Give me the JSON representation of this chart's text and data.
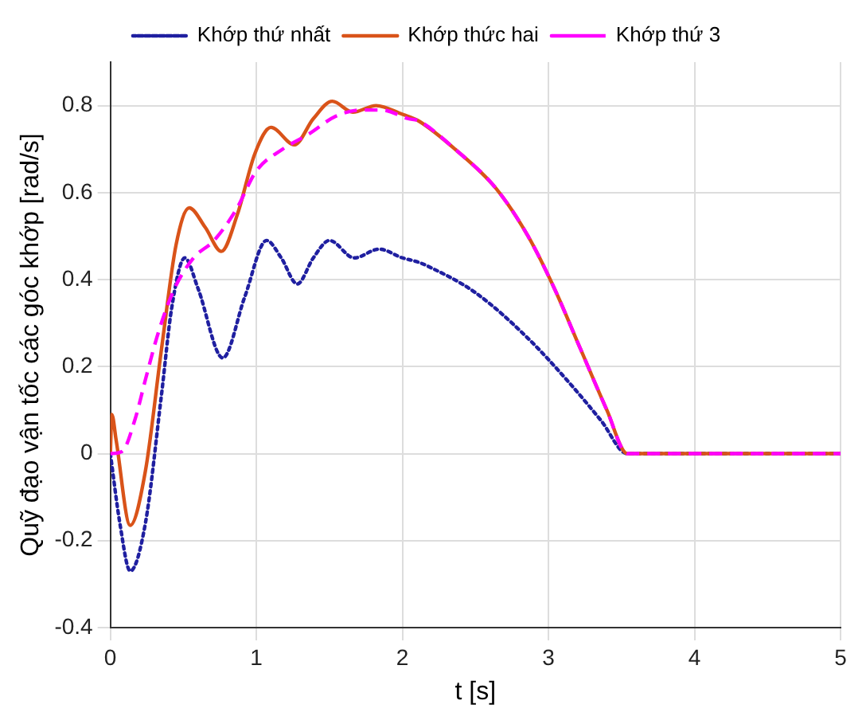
{
  "chart_data": {
    "type": "line",
    "xlabel": "t [s]",
    "ylabel": "Quỹ đạo vận tốc các góc khớp [rad/s]",
    "xlim": [
      0,
      5
    ],
    "xticks": [
      0,
      1,
      2,
      3,
      4,
      5
    ],
    "ylim": [
      -0.4,
      0.9
    ],
    "yticks": [
      -0.4,
      -0.2,
      0,
      0.2,
      0.4,
      0.6,
      0.8
    ],
    "grid": true,
    "legend": "top",
    "marker": "none",
    "series": [
      {
        "name": "Khớp thứ nhất",
        "color": "#1f1fa0",
        "line_style": "dotted",
        "x": [
          0,
          0.065,
          0.136,
          0.24,
          0.35,
          0.42,
          0.51,
          0.6,
          0.77,
          0.92,
          1.07,
          1.17,
          1.28,
          1.39,
          1.5,
          1.67,
          1.84,
          2.0,
          2.11,
          2.18,
          2.5,
          2.86,
          3.15,
          3.36,
          3.54,
          4,
          5
        ],
        "values": [
          0,
          -0.16,
          -0.27,
          -0.16,
          0.135,
          0.335,
          0.45,
          0.38,
          0.22,
          0.36,
          0.49,
          0.45,
          0.39,
          0.45,
          0.49,
          0.45,
          0.47,
          0.45,
          0.44,
          0.43,
          0.37,
          0.265,
          0.16,
          0.076,
          0,
          0,
          0
        ]
      },
      {
        "name": "Khớp thức hai",
        "color": "#d95319",
        "line_style": "solid",
        "x": [
          0,
          0.01,
          0.04,
          0.136,
          0.24,
          0.35,
          0.45,
          0.54,
          0.65,
          0.76,
          0.87,
          0.99,
          1.1,
          1.26,
          1.39,
          1.52,
          1.66,
          1.82,
          2.0,
          2.11,
          2.36,
          2.64,
          2.86,
          3.04,
          3.22,
          3.4,
          3.54,
          4,
          5
        ],
        "values": [
          0,
          0.09,
          0.03,
          -0.165,
          -0.04,
          0.24,
          0.48,
          0.565,
          0.52,
          0.465,
          0.55,
          0.69,
          0.75,
          0.71,
          0.77,
          0.81,
          0.785,
          0.8,
          0.78,
          0.765,
          0.7,
          0.61,
          0.5,
          0.38,
          0.24,
          0.1,
          0,
          0,
          0
        ]
      },
      {
        "name": "Khớp thứ 3",
        "color": "#ff00ff",
        "line_style": "dashed",
        "x": [
          0,
          0.08,
          0.17,
          0.24,
          0.33,
          0.44,
          0.57,
          0.71,
          0.86,
          1.0,
          1.18,
          1.36,
          1.54,
          1.72,
          1.86,
          2.04,
          2.11,
          2.36,
          2.64,
          2.86,
          3.04,
          3.22,
          3.4,
          3.54,
          4,
          5
        ],
        "values": [
          0,
          0.005,
          0.08,
          0.17,
          0.28,
          0.38,
          0.45,
          0.49,
          0.56,
          0.65,
          0.7,
          0.735,
          0.775,
          0.79,
          0.79,
          0.77,
          0.765,
          0.7,
          0.61,
          0.5,
          0.38,
          0.24,
          0.1,
          0,
          0,
          0
        ]
      }
    ]
  }
}
